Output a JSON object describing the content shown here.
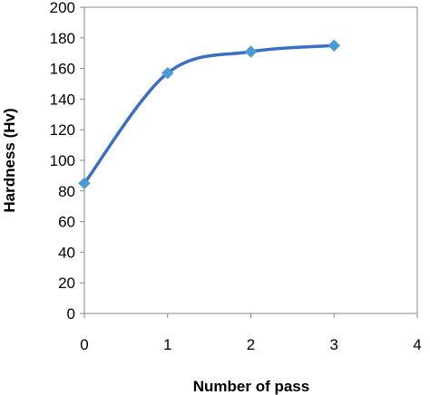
{
  "chart_data": {
    "type": "line",
    "title": "",
    "xlabel": "Number of pass",
    "ylabel": "Hardness (Hv)",
    "xlim": [
      0,
      4
    ],
    "ylim": [
      0,
      200
    ],
    "x_ticks": [
      "0",
      "1",
      "2",
      "3",
      "4"
    ],
    "y_ticks": [
      "0",
      "20",
      "40",
      "60",
      "80",
      "100",
      "120",
      "140",
      "160",
      "180",
      "200"
    ],
    "grid": false,
    "legend": "none",
    "smoothed": true,
    "line_color": "#3a6fc4",
    "marker_color": "#4a9ad8",
    "marker": "diamond",
    "series": [
      {
        "x": [
          0,
          1,
          2,
          3
        ],
        "y": [
          85,
          157,
          171,
          175
        ]
      }
    ]
  }
}
